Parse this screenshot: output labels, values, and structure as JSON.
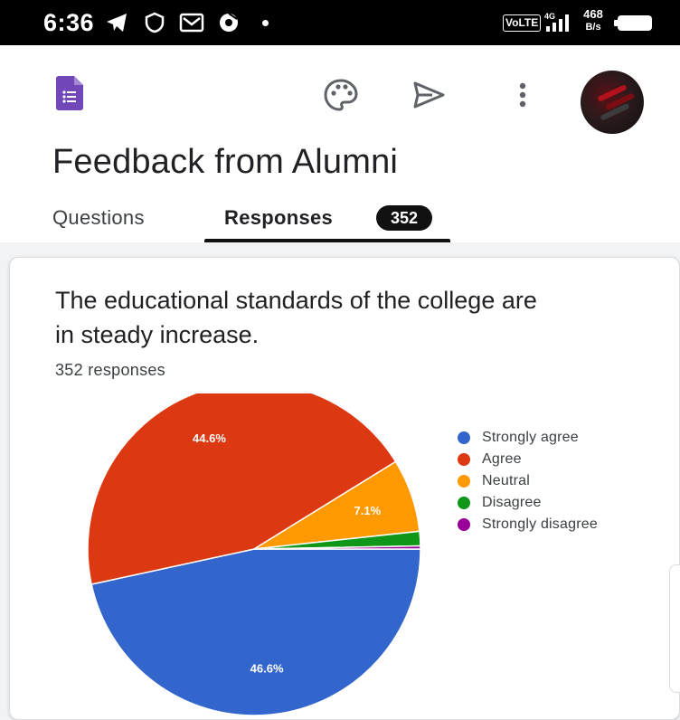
{
  "status_bar": {
    "time": "6:36",
    "volte": "VoLTE",
    "speed_value": "468",
    "speed_unit": "B/s",
    "icons": [
      "telegram-icon",
      "shield-icon",
      "mail-icon",
      "chrome-icon",
      "signal-icon",
      "battery-icon"
    ]
  },
  "app_bar": {
    "icons": [
      "google-forms-logo",
      "palette-icon",
      "send-icon",
      "more-vert-icon",
      "avatar"
    ]
  },
  "form": {
    "title": "Feedback from Alumni"
  },
  "tabs": {
    "questions": "Questions",
    "responses": "Responses",
    "responses_count": "352"
  },
  "question": {
    "title": "The educational standards of the college are in steady increase.",
    "response_count": "352 responses"
  },
  "chart_data": {
    "type": "pie",
    "categories": [
      "Strongly agree",
      "Agree",
      "Neutral",
      "Disagree",
      "Strongly disagree"
    ],
    "values": [
      46.6,
      44.6,
      7.1,
      1.4,
      0.3
    ],
    "labels": [
      "46.6%",
      "44.6%",
      "7.1%",
      "",
      ""
    ],
    "colors": [
      "#3366cc",
      "#dc3912",
      "#ff9900",
      "#109618",
      "#990099"
    ],
    "legend": "right"
  },
  "colors": {
    "forms_purple": "#7248b9",
    "badge_bg": "#111111",
    "tab_indicator": "#111111"
  }
}
